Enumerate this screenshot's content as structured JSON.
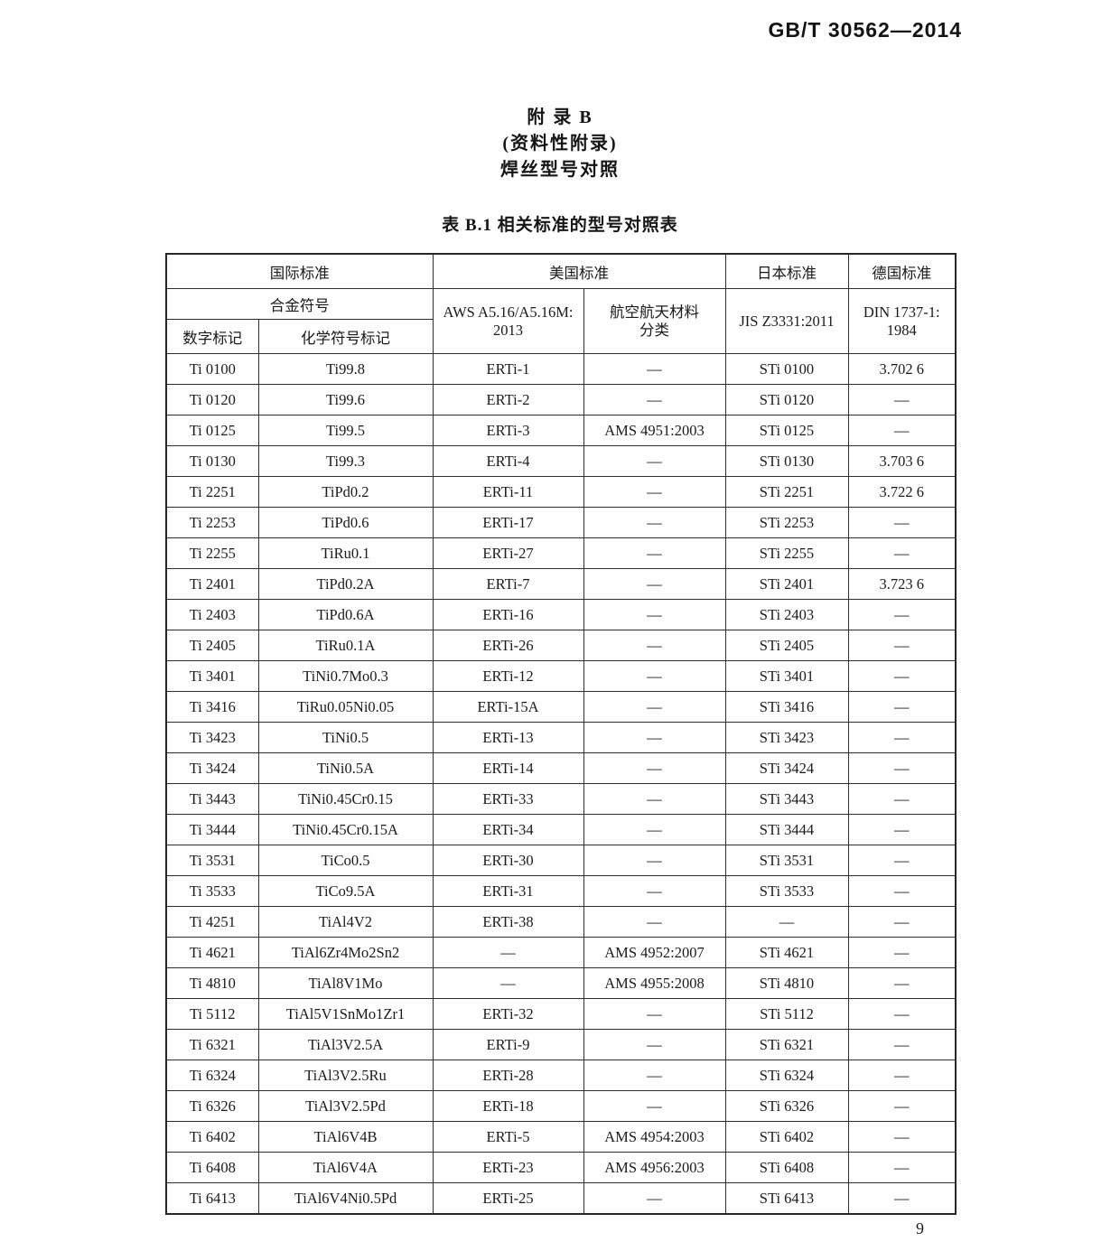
{
  "page": {
    "doc_number": "GB/T 30562—2014",
    "page_number": "9"
  },
  "appendix": {
    "title": "附  录  B",
    "subtitle": "(资料性附录)",
    "heading": "焊丝型号对照"
  },
  "table": {
    "caption": "表 B.1  相关标准的型号对照表",
    "header": {
      "intl_standard": "国际标准",
      "us_standard": "美国标准",
      "jp_standard": "日本标准",
      "de_standard": "德国标准",
      "alloy_symbol": "合金符号",
      "aws_line1": "AWS A5.16/A5.16M:",
      "aws_line2": "2013",
      "aero_line1": "航空航天材料",
      "aero_line2": "分类",
      "jis": "JIS Z3331:2011",
      "din_line1": "DIN 1737-1:",
      "din_line2": "1984",
      "numeric_mark": "数字标记",
      "chemical_mark": "化学符号标记"
    },
    "rows": [
      [
        "Ti 0100",
        "Ti99.8",
        "ERTi-1",
        "—",
        "STi 0100",
        "3.702 6"
      ],
      [
        "Ti 0120",
        "Ti99.6",
        "ERTi-2",
        "—",
        "STi 0120",
        "—"
      ],
      [
        "Ti 0125",
        "Ti99.5",
        "ERTi-3",
        "AMS 4951:2003",
        "STi 0125",
        "—"
      ],
      [
        "Ti 0130",
        "Ti99.3",
        "ERTi-4",
        "—",
        "STi 0130",
        "3.703 6"
      ],
      [
        "Ti 2251",
        "TiPd0.2",
        "ERTi-11",
        "—",
        "STi 2251",
        "3.722 6"
      ],
      [
        "Ti 2253",
        "TiPd0.6",
        "ERTi-17",
        "—",
        "STi 2253",
        "—"
      ],
      [
        "Ti 2255",
        "TiRu0.1",
        "ERTi-27",
        "—",
        "STi 2255",
        "—"
      ],
      [
        "Ti 2401",
        "TiPd0.2A",
        "ERTi-7",
        "—",
        "STi 2401",
        "3.723 6"
      ],
      [
        "Ti 2403",
        "TiPd0.6A",
        "ERTi-16",
        "—",
        "STi 2403",
        "—"
      ],
      [
        "Ti 2405",
        "TiRu0.1A",
        "ERTi-26",
        "—",
        "STi 2405",
        "—"
      ],
      [
        "Ti 3401",
        "TiNi0.7Mo0.3",
        "ERTi-12",
        "—",
        "STi 3401",
        "—"
      ],
      [
        "Ti 3416",
        "TiRu0.05Ni0.05",
        "ERTi-15A",
        "—",
        "STi 3416",
        "—"
      ],
      [
        "Ti 3423",
        "TiNi0.5",
        "ERTi-13",
        "—",
        "STi 3423",
        "—"
      ],
      [
        "Ti 3424",
        "TiNi0.5A",
        "ERTi-14",
        "—",
        "STi 3424",
        "—"
      ],
      [
        "Ti 3443",
        "TiNi0.45Cr0.15",
        "ERTi-33",
        "—",
        "STi 3443",
        "—"
      ],
      [
        "Ti 3444",
        "TiNi0.45Cr0.15A",
        "ERTi-34",
        "—",
        "STi 3444",
        "—"
      ],
      [
        "Ti 3531",
        "TiCo0.5",
        "ERTi-30",
        "—",
        "STi 3531",
        "—"
      ],
      [
        "Ti 3533",
        "TiCo9.5A",
        "ERTi-31",
        "—",
        "STi 3533",
        "—"
      ],
      [
        "Ti 4251",
        "TiAl4V2",
        "ERTi-38",
        "—",
        "—",
        "—"
      ],
      [
        "Ti 4621",
        "TiAl6Zr4Mo2Sn2",
        "—",
        "AMS 4952:2007",
        "STi 4621",
        "—"
      ],
      [
        "Ti 4810",
        "TiAl8V1Mo",
        "—",
        "AMS 4955:2008",
        "STi 4810",
        "—"
      ],
      [
        "Ti 5112",
        "TiAl5V1SnMo1Zr1",
        "ERTi-32",
        "—",
        "STi 5112",
        "—"
      ],
      [
        "Ti 6321",
        "TiAl3V2.5A",
        "ERTi-9",
        "—",
        "STi 6321",
        "—"
      ],
      [
        "Ti 6324",
        "TiAl3V2.5Ru",
        "ERTi-28",
        "—",
        "STi 6324",
        "—"
      ],
      [
        "Ti 6326",
        "TiAl3V2.5Pd",
        "ERTi-18",
        "—",
        "STi 6326",
        "—"
      ],
      [
        "Ti 6402",
        "TiAl6V4B",
        "ERTi-5",
        "AMS 4954:2003",
        "STi 6402",
        "—"
      ],
      [
        "Ti 6408",
        "TiAl6V4A",
        "ERTi-23",
        "AMS 4956:2003",
        "STi 6408",
        "—"
      ],
      [
        "Ti 6413",
        "TiAl6V4Ni0.5Pd",
        "ERTi-25",
        "—",
        "STi 6413",
        "—"
      ]
    ]
  }
}
